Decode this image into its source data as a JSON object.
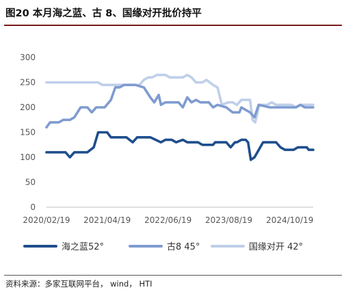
{
  "figure": {
    "title": "图20 本月海之蓝、古 8、国缘对开批价持平",
    "source": "资料来源：多家互联网平台， wind， HTI"
  },
  "chart_data": {
    "type": "line",
    "x_tick_labels": [
      "2020/02/19",
      "2021/04/19",
      "2022/06/19",
      "2023/08/19",
      "2024/10/19"
    ],
    "x_tick_dates": [
      "2020-02-19",
      "2021-04-19",
      "2022-06-19",
      "2023-08-19",
      "2024-10-19"
    ],
    "xlim": [
      "2020-02-19",
      "2025-04-01"
    ],
    "ylim": [
      0,
      300
    ],
    "y_ticks": [
      0,
      50,
      100,
      150,
      200,
      250,
      300
    ],
    "grid": false,
    "legend_position": "bottom",
    "series": [
      {
        "name": "海之蓝52°",
        "color": "#1f4e8c",
        "points": [
          [
            "2020-02-19",
            110
          ],
          [
            "2020-05-15",
            110
          ],
          [
            "2020-07-01",
            110
          ],
          [
            "2020-08-01",
            100
          ],
          [
            "2020-09-01",
            110
          ],
          [
            "2020-12-01",
            110
          ],
          [
            "2021-01-15",
            120
          ],
          [
            "2021-02-15",
            150
          ],
          [
            "2021-04-19",
            150
          ],
          [
            "2021-05-15",
            140
          ],
          [
            "2021-09-01",
            140
          ],
          [
            "2021-10-15",
            130
          ],
          [
            "2021-11-15",
            140
          ],
          [
            "2022-02-15",
            140
          ],
          [
            "2022-05-01",
            130
          ],
          [
            "2022-06-01",
            135
          ],
          [
            "2022-07-15",
            135
          ],
          [
            "2022-08-15",
            130
          ],
          [
            "2022-10-01",
            135
          ],
          [
            "2022-11-01",
            130
          ],
          [
            "2023-01-15",
            130
          ],
          [
            "2023-02-15",
            125
          ],
          [
            "2023-05-01",
            125
          ],
          [
            "2023-05-15",
            130
          ],
          [
            "2023-08-01",
            130
          ],
          [
            "2023-09-01",
            120
          ],
          [
            "2023-10-01",
            130
          ],
          [
            "2023-10-15",
            130
          ],
          [
            "2023-11-15",
            135
          ],
          [
            "2023-12-15",
            135
          ],
          [
            "2024-01-01",
            130
          ],
          [
            "2024-01-20",
            95
          ],
          [
            "2024-02-15",
            100
          ],
          [
            "2024-04-15",
            130
          ],
          [
            "2024-07-15",
            130
          ],
          [
            "2024-08-15",
            120
          ],
          [
            "2024-09-15",
            115
          ],
          [
            "2024-11-15",
            115
          ],
          [
            "2024-12-15",
            120
          ],
          [
            "2025-02-15",
            120
          ],
          [
            "2025-03-01",
            115
          ],
          [
            "2025-04-01",
            115
          ]
        ]
      },
      {
        "name": "古8 45°",
        "color": "#7f9bd0",
        "points": [
          [
            "2020-02-19",
            160
          ],
          [
            "2020-03-15",
            170
          ],
          [
            "2020-05-15",
            170
          ],
          [
            "2020-06-15",
            175
          ],
          [
            "2020-08-01",
            175
          ],
          [
            "2020-09-01",
            180
          ],
          [
            "2020-10-15",
            200
          ],
          [
            "2020-12-01",
            200
          ],
          [
            "2021-01-01",
            190
          ],
          [
            "2021-02-01",
            200
          ],
          [
            "2021-04-01",
            200
          ],
          [
            "2021-05-15",
            215
          ],
          [
            "2021-06-15",
            240
          ],
          [
            "2021-07-15",
            240
          ],
          [
            "2021-08-15",
            245
          ],
          [
            "2021-11-01",
            245
          ],
          [
            "2022-01-01",
            240
          ],
          [
            "2022-02-15",
            220
          ],
          [
            "2022-03-15",
            210
          ],
          [
            "2022-04-15",
            225
          ],
          [
            "2022-05-01",
            205
          ],
          [
            "2022-06-01",
            210
          ],
          [
            "2022-09-01",
            210
          ],
          [
            "2022-10-01",
            200
          ],
          [
            "2022-11-01",
            220
          ],
          [
            "2022-12-01",
            210
          ],
          [
            "2023-01-01",
            215
          ],
          [
            "2023-02-01",
            210
          ],
          [
            "2023-04-01",
            210
          ],
          [
            "2023-05-01",
            200
          ],
          [
            "2023-06-01",
            205
          ],
          [
            "2023-08-01",
            200
          ],
          [
            "2023-09-15",
            190
          ],
          [
            "2023-11-01",
            190
          ],
          [
            "2023-11-15",
            200
          ],
          [
            "2023-12-15",
            195
          ],
          [
            "2024-01-15",
            190
          ],
          [
            "2024-02-15",
            180
          ],
          [
            "2024-03-15",
            205
          ],
          [
            "2024-06-01",
            200
          ],
          [
            "2024-09-01",
            200
          ],
          [
            "2024-12-01",
            200
          ],
          [
            "2025-01-01",
            205
          ],
          [
            "2025-02-01",
            200
          ],
          [
            "2025-04-01",
            200
          ]
        ]
      },
      {
        "name": "国缘对开 42°",
        "color": "#bfcfea",
        "points": [
          [
            "2020-02-19",
            250
          ],
          [
            "2021-02-15",
            250
          ],
          [
            "2021-03-15",
            245
          ],
          [
            "2021-12-01",
            245
          ],
          [
            "2022-01-01",
            255
          ],
          [
            "2022-02-01",
            260
          ],
          [
            "2022-03-01",
            260
          ],
          [
            "2022-04-01",
            265
          ],
          [
            "2022-06-01",
            265
          ],
          [
            "2022-07-01",
            260
          ],
          [
            "2022-10-01",
            260
          ],
          [
            "2022-11-01",
            265
          ],
          [
            "2022-12-01",
            260
          ],
          [
            "2023-01-01",
            250
          ],
          [
            "2023-02-15",
            250
          ],
          [
            "2023-03-15",
            255
          ],
          [
            "2023-05-01",
            245
          ],
          [
            "2023-06-01",
            240
          ],
          [
            "2023-07-01",
            205
          ],
          [
            "2023-08-15",
            210
          ],
          [
            "2023-09-15",
            210
          ],
          [
            "2023-10-15",
            205
          ],
          [
            "2023-11-15",
            215
          ],
          [
            "2024-01-15",
            215
          ],
          [
            "2024-02-01",
            175
          ],
          [
            "2024-02-20",
            170
          ],
          [
            "2024-03-20",
            205
          ],
          [
            "2024-05-15",
            205
          ],
          [
            "2024-06-15",
            210
          ],
          [
            "2024-07-15",
            205
          ],
          [
            "2024-11-01",
            205
          ],
          [
            "2024-12-01",
            200
          ],
          [
            "2025-01-01",
            205
          ],
          [
            "2025-02-01",
            205
          ],
          [
            "2025-04-01",
            205
          ]
        ]
      }
    ]
  }
}
